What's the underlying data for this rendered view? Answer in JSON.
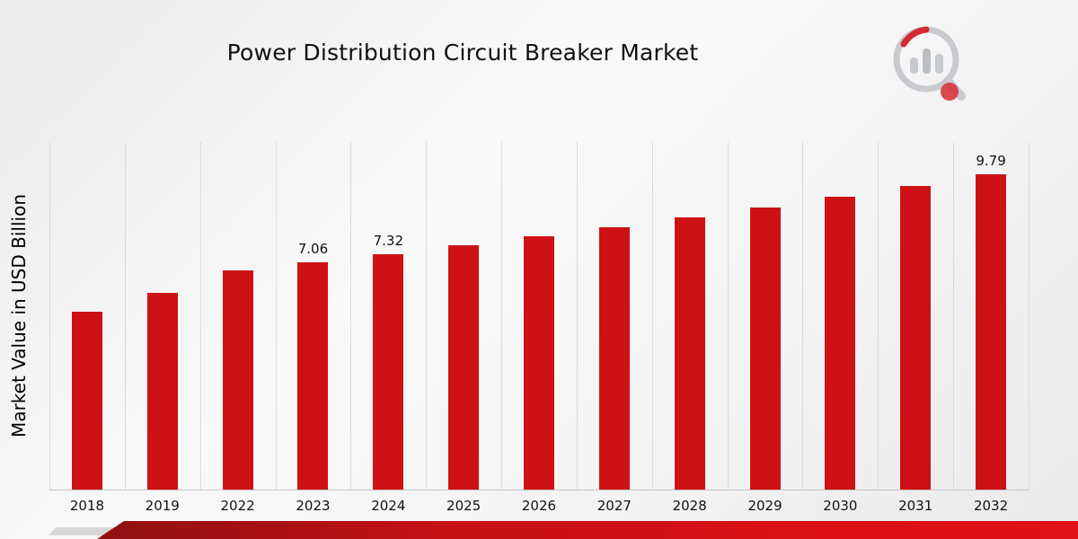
{
  "title": "Power Distribution Circuit Breaker Market",
  "y_axis_label": "Market Value in USD Billion",
  "brand": {
    "logo_icon": "magnifier-bar-chart-logo-icon",
    "accent_red": "#ce1114",
    "logo_gray": "#c3c6ca"
  },
  "chart_data": {
    "type": "bar",
    "title": "Power Distribution Circuit Breaker Market",
    "xlabel": "",
    "ylabel": "Market Value in USD Billion",
    "categories": [
      "2018",
      "2019",
      "2022",
      "2023",
      "2024",
      "2025",
      "2026",
      "2027",
      "2028",
      "2029",
      "2030",
      "2031",
      "2032"
    ],
    "values": [
      5.53,
      6.12,
      6.81,
      7.06,
      7.32,
      7.59,
      7.87,
      8.16,
      8.46,
      8.77,
      9.1,
      9.44,
      9.79
    ],
    "data_labels": {
      "2023": "7.06",
      "2024": "7.32",
      "2032": "9.79"
    },
    "ylim": [
      0,
      10.8
    ],
    "bar_color": "#ce1114",
    "grid": "vertical-column-separators",
    "legend": "none"
  }
}
